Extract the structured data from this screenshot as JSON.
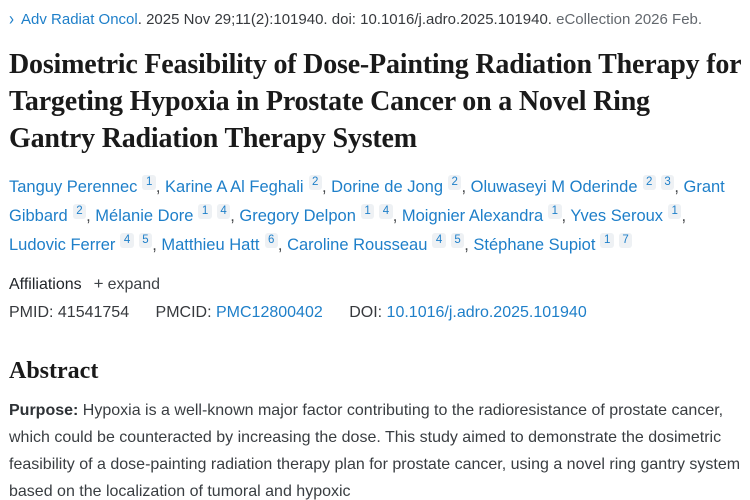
{
  "citation": {
    "chevron": "›",
    "journal": "Adv Radiat Oncol",
    "rest": ". 2025 Nov 29;11(2):101940. doi: 10.1016/j.adro.2025.101940.",
    "ecollection": "eCollection 2026 Feb."
  },
  "title": "Dosimetric Feasibility of Dose-Painting Radiation Therapy for Targeting Hypoxia in Prostate Cancer on a Novel Ring Gantry Radiation Therapy System",
  "authors": [
    {
      "name": "Tanguy Perennec",
      "sups": [
        "1"
      ]
    },
    {
      "name": "Karine A Al Feghali",
      "sups": [
        "2"
      ]
    },
    {
      "name": "Dorine de Jong",
      "sups": [
        "2"
      ]
    },
    {
      "name": "Oluwaseyi M Oderinde",
      "sups": [
        "2",
        "3"
      ]
    },
    {
      "name": "Grant Gibbard",
      "sups": [
        "2"
      ]
    },
    {
      "name": "Mélanie Dore",
      "sups": [
        "1",
        "4"
      ]
    },
    {
      "name": "Gregory Delpon",
      "sups": [
        "1",
        "4"
      ]
    },
    {
      "name": "Moignier Alexandra",
      "sups": [
        "1"
      ]
    },
    {
      "name": "Yves Seroux",
      "sups": [
        "1"
      ]
    },
    {
      "name": "Ludovic Ferrer",
      "sups": [
        "4",
        "5"
      ]
    },
    {
      "name": "Matthieu Hatt",
      "sups": [
        "6"
      ]
    },
    {
      "name": "Caroline Rousseau",
      "sups": [
        "4",
        "5"
      ]
    },
    {
      "name": "Stéphane Supiot",
      "sups": [
        "1",
        "7"
      ]
    }
  ],
  "affiliations": {
    "label": "Affiliations",
    "plus_icon": "+",
    "expand_label": "expand"
  },
  "identifiers": {
    "pmid_label": "PMID:",
    "pmid_value": "41541754",
    "pmcid_label": "PMCID:",
    "pmcid_value": "PMC12800402",
    "doi_label": "DOI:",
    "doi_value": "10.1016/j.adro.2025.101940"
  },
  "abstract": {
    "heading": "Abstract",
    "purpose_label": "Purpose:",
    "purpose_text": "Hypoxia is a well-known major factor contributing to the radioresistance of prostate cancer, which could be counteracted by increasing the dose. This study aimed to demonstrate the dosimetric feasibility of a dose-painting radiation therapy plan for prostate cancer, using a novel ring gantry system based on the localization of tumoral and hypoxic"
  },
  "colors": {
    "link_blue": "#1e7fc9",
    "text_dark": "#36393d",
    "text_gray": "#63686e",
    "title_black": "#1a1a1a",
    "sup_chip_bg": "#eef1f4"
  }
}
